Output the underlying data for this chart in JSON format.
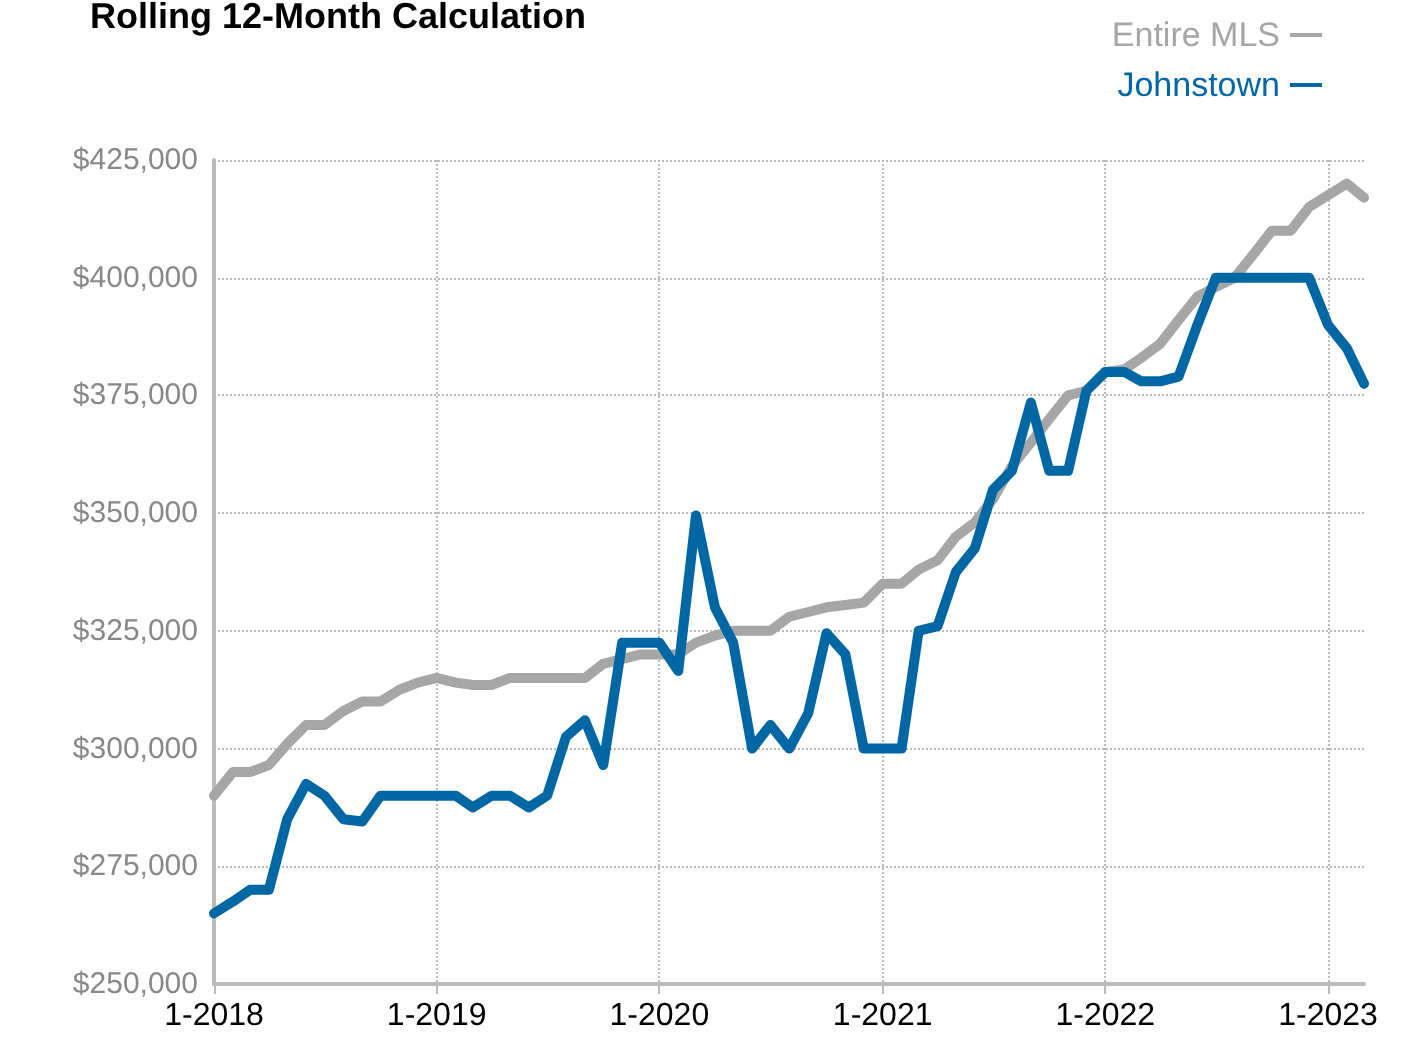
{
  "chart_data": {
    "type": "line",
    "title": "Rolling 12-Month Calculation",
    "x": [
      "2018-01",
      "2018-02",
      "2018-03",
      "2018-04",
      "2018-05",
      "2018-06",
      "2018-07",
      "2018-08",
      "2018-09",
      "2018-10",
      "2018-11",
      "2018-12",
      "2019-01",
      "2019-02",
      "2019-03",
      "2019-04",
      "2019-05",
      "2019-06",
      "2019-07",
      "2019-08",
      "2019-09",
      "2019-10",
      "2019-11",
      "2019-12",
      "2020-01",
      "2020-02",
      "2020-03",
      "2020-04",
      "2020-05",
      "2020-06",
      "2020-07",
      "2020-08",
      "2020-09",
      "2020-10",
      "2020-11",
      "2020-12",
      "2021-01",
      "2021-02",
      "2021-03",
      "2021-04",
      "2021-05",
      "2021-06",
      "2021-07",
      "2021-08",
      "2021-09",
      "2021-10",
      "2021-11",
      "2021-12",
      "2022-01",
      "2022-02",
      "2022-03",
      "2022-04",
      "2022-05",
      "2022-06",
      "2022-07",
      "2022-08",
      "2022-09",
      "2022-10",
      "2022-11",
      "2022-12",
      "2023-01",
      "2023-02",
      "2023-03"
    ],
    "series": [
      {
        "name": "Entire MLS",
        "color": "#a6a6a6",
        "values": [
          290000,
          295000,
          295000,
          296500,
          301000,
          305000,
          305000,
          308000,
          310000,
          310000,
          312500,
          314000,
          315000,
          314000,
          313500,
          313500,
          315000,
          315000,
          315000,
          315000,
          315000,
          318000,
          319000,
          320000,
          320000,
          320000,
          322500,
          324000,
          325000,
          325000,
          325000,
          328000,
          329000,
          330000,
          330500,
          331000,
          335000,
          335000,
          338000,
          340000,
          345000,
          348000,
          353000,
          360000,
          365000,
          370000,
          375000,
          376000,
          380000,
          380500,
          383000,
          386000,
          391000,
          396000,
          398000,
          400000,
          405000,
          410000,
          410000,
          415000,
          417500,
          420000,
          417000
        ]
      },
      {
        "name": "Johnstown",
        "color": "#0067a5",
        "values": [
          265000,
          267500,
          270000,
          270000,
          285000,
          292500,
          290000,
          285000,
          284500,
          290000,
          290000,
          290000,
          290000,
          290000,
          287500,
          290000,
          290000,
          287500,
          290000,
          302500,
          306000,
          296500,
          322500,
          322500,
          322500,
          316500,
          349500,
          330000,
          322500,
          300000,
          305000,
          300000,
          307500,
          324500,
          320000,
          300000,
          300000,
          300000,
          325000,
          326000,
          337500,
          342500,
          355000,
          359000,
          373500,
          359000,
          359000,
          376000,
          380000,
          380000,
          378000,
          378000,
          379000,
          390000,
          400000,
          400000,
          400000,
          400000,
          400000,
          400000,
          390000,
          385000,
          377500
        ]
      }
    ],
    "xlim": [
      "2018-01",
      "2023-03"
    ],
    "xticks": [
      {
        "value": "2018-01",
        "label": "1-2018"
      },
      {
        "value": "2019-01",
        "label": "1-2019"
      },
      {
        "value": "2020-01",
        "label": "1-2020"
      },
      {
        "value": "2021-01",
        "label": "1-2021"
      },
      {
        "value": "2022-01",
        "label": "1-2022"
      },
      {
        "value": "2023-01",
        "label": "1-2023"
      }
    ],
    "ylim": [
      250000,
      425000
    ],
    "yticks": [
      {
        "value": 250000,
        "label": "$250,000"
      },
      {
        "value": 275000,
        "label": "$275,000"
      },
      {
        "value": 300000,
        "label": "$300,000"
      },
      {
        "value": 325000,
        "label": "$325,000"
      },
      {
        "value": 350000,
        "label": "$350,000"
      },
      {
        "value": 375000,
        "label": "$375,000"
      },
      {
        "value": 400000,
        "label": "$400,000"
      },
      {
        "value": 425000,
        "label": "$425,000"
      }
    ],
    "grid": true,
    "legend": "top right",
    "marker": "none",
    "line_style": "solid"
  }
}
